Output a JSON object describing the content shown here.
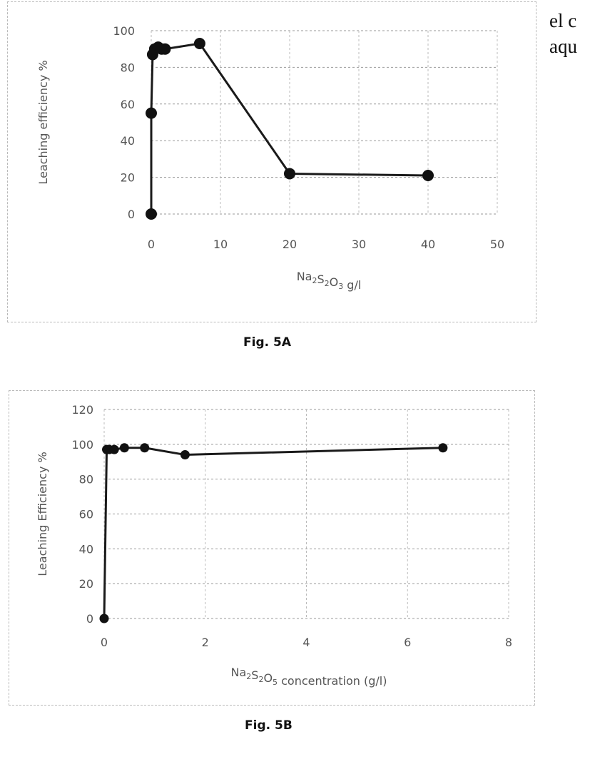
{
  "side_text": {
    "line1": "el c",
    "line2": "aqu"
  },
  "chart_data": [
    {
      "id": "chartA",
      "type": "line",
      "caption": "Fig. 5A",
      "xlabel": {
        "base": "Na",
        "s1": "2",
        "mid": "S",
        "s2": "2",
        "o": "O",
        "s3": "3",
        "tail": " g/l"
      },
      "ylabel": "Leaching efficiency %",
      "xlim": [
        0,
        50
      ],
      "ylim": [
        0,
        100
      ],
      "x_ticks": [
        0,
        10,
        20,
        30,
        40,
        50
      ],
      "y_ticks": [
        0,
        20,
        40,
        60,
        80,
        100
      ],
      "grid": true,
      "series": [
        {
          "name": "Leaching efficiency",
          "x": [
            0,
            0,
            0.2,
            0.5,
            1.0,
            1.5,
            2.0,
            7,
            20,
            40
          ],
          "y": [
            0,
            55,
            87,
            90,
            91,
            90,
            90,
            93,
            22,
            21
          ]
        }
      ]
    },
    {
      "id": "chartB",
      "type": "line",
      "caption": "Fig. 5B",
      "xlabel": {
        "base": "Na",
        "s1": "2",
        "mid": "S",
        "s2": "2",
        "o": "O",
        "s3": "5",
        "tail": " concentration (g/l)"
      },
      "ylabel": "Leaching Efficiency %",
      "xlim": [
        0,
        8
      ],
      "ylim": [
        0,
        120
      ],
      "x_ticks": [
        0,
        2,
        4,
        6,
        8
      ],
      "y_ticks": [
        0,
        20,
        40,
        60,
        80,
        100,
        120
      ],
      "grid": true,
      "series": [
        {
          "name": "Leaching efficiency",
          "x": [
            0,
            0.05,
            0.1,
            0.2,
            0.4,
            0.8,
            1.6,
            6.7
          ],
          "y": [
            0,
            97,
            97,
            97,
            98,
            98,
            94,
            98
          ]
        }
      ]
    }
  ]
}
